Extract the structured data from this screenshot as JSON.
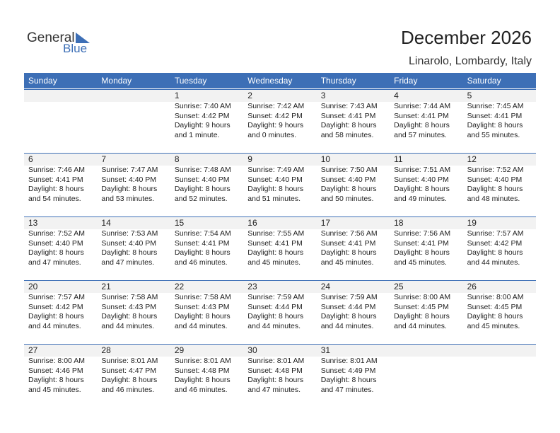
{
  "logo": {
    "general": "General",
    "blue": "Blue"
  },
  "header": {
    "title": "December 2026",
    "subtitle": "Linarolo, Lombardy, Italy"
  },
  "weekdays": [
    "Sunday",
    "Monday",
    "Tuesday",
    "Wednesday",
    "Thursday",
    "Friday",
    "Saturday"
  ],
  "weeks": [
    [
      null,
      null,
      {
        "day": 1,
        "lines": [
          "Sunrise: 7:40 AM",
          "Sunset: 4:42 PM",
          "Daylight: 9 hours",
          "and 1 minute."
        ]
      },
      {
        "day": 2,
        "lines": [
          "Sunrise: 7:42 AM",
          "Sunset: 4:42 PM",
          "Daylight: 9 hours",
          "and 0 minutes."
        ]
      },
      {
        "day": 3,
        "lines": [
          "Sunrise: 7:43 AM",
          "Sunset: 4:41 PM",
          "Daylight: 8 hours",
          "and 58 minutes."
        ]
      },
      {
        "day": 4,
        "lines": [
          "Sunrise: 7:44 AM",
          "Sunset: 4:41 PM",
          "Daylight: 8 hours",
          "and 57 minutes."
        ]
      },
      {
        "day": 5,
        "lines": [
          "Sunrise: 7:45 AM",
          "Sunset: 4:41 PM",
          "Daylight: 8 hours",
          "and 55 minutes."
        ]
      }
    ],
    [
      {
        "day": 6,
        "lines": [
          "Sunrise: 7:46 AM",
          "Sunset: 4:41 PM",
          "Daylight: 8 hours",
          "and 54 minutes."
        ]
      },
      {
        "day": 7,
        "lines": [
          "Sunrise: 7:47 AM",
          "Sunset: 4:40 PM",
          "Daylight: 8 hours",
          "and 53 minutes."
        ]
      },
      {
        "day": 8,
        "lines": [
          "Sunrise: 7:48 AM",
          "Sunset: 4:40 PM",
          "Daylight: 8 hours",
          "and 52 minutes."
        ]
      },
      {
        "day": 9,
        "lines": [
          "Sunrise: 7:49 AM",
          "Sunset: 4:40 PM",
          "Daylight: 8 hours",
          "and 51 minutes."
        ]
      },
      {
        "day": 10,
        "lines": [
          "Sunrise: 7:50 AM",
          "Sunset: 4:40 PM",
          "Daylight: 8 hours",
          "and 50 minutes."
        ]
      },
      {
        "day": 11,
        "lines": [
          "Sunrise: 7:51 AM",
          "Sunset: 4:40 PM",
          "Daylight: 8 hours",
          "and 49 minutes."
        ]
      },
      {
        "day": 12,
        "lines": [
          "Sunrise: 7:52 AM",
          "Sunset: 4:40 PM",
          "Daylight: 8 hours",
          "and 48 minutes."
        ]
      }
    ],
    [
      {
        "day": 13,
        "lines": [
          "Sunrise: 7:52 AM",
          "Sunset: 4:40 PM",
          "Daylight: 8 hours",
          "and 47 minutes."
        ]
      },
      {
        "day": 14,
        "lines": [
          "Sunrise: 7:53 AM",
          "Sunset: 4:40 PM",
          "Daylight: 8 hours",
          "and 47 minutes."
        ]
      },
      {
        "day": 15,
        "lines": [
          "Sunrise: 7:54 AM",
          "Sunset: 4:41 PM",
          "Daylight: 8 hours",
          "and 46 minutes."
        ]
      },
      {
        "day": 16,
        "lines": [
          "Sunrise: 7:55 AM",
          "Sunset: 4:41 PM",
          "Daylight: 8 hours",
          "and 45 minutes."
        ]
      },
      {
        "day": 17,
        "lines": [
          "Sunrise: 7:56 AM",
          "Sunset: 4:41 PM",
          "Daylight: 8 hours",
          "and 45 minutes."
        ]
      },
      {
        "day": 18,
        "lines": [
          "Sunrise: 7:56 AM",
          "Sunset: 4:41 PM",
          "Daylight: 8 hours",
          "and 45 minutes."
        ]
      },
      {
        "day": 19,
        "lines": [
          "Sunrise: 7:57 AM",
          "Sunset: 4:42 PM",
          "Daylight: 8 hours",
          "and 44 minutes."
        ]
      }
    ],
    [
      {
        "day": 20,
        "lines": [
          "Sunrise: 7:57 AM",
          "Sunset: 4:42 PM",
          "Daylight: 8 hours",
          "and 44 minutes."
        ]
      },
      {
        "day": 21,
        "lines": [
          "Sunrise: 7:58 AM",
          "Sunset: 4:43 PM",
          "Daylight: 8 hours",
          "and 44 minutes."
        ]
      },
      {
        "day": 22,
        "lines": [
          "Sunrise: 7:58 AM",
          "Sunset: 4:43 PM",
          "Daylight: 8 hours",
          "and 44 minutes."
        ]
      },
      {
        "day": 23,
        "lines": [
          "Sunrise: 7:59 AM",
          "Sunset: 4:44 PM",
          "Daylight: 8 hours",
          "and 44 minutes."
        ]
      },
      {
        "day": 24,
        "lines": [
          "Sunrise: 7:59 AM",
          "Sunset: 4:44 PM",
          "Daylight: 8 hours",
          "and 44 minutes."
        ]
      },
      {
        "day": 25,
        "lines": [
          "Sunrise: 8:00 AM",
          "Sunset: 4:45 PM",
          "Daylight: 8 hours",
          "and 44 minutes."
        ]
      },
      {
        "day": 26,
        "lines": [
          "Sunrise: 8:00 AM",
          "Sunset: 4:45 PM",
          "Daylight: 8 hours",
          "and 45 minutes."
        ]
      }
    ],
    [
      {
        "day": 27,
        "lines": [
          "Sunrise: 8:00 AM",
          "Sunset: 4:46 PM",
          "Daylight: 8 hours",
          "and 45 minutes."
        ]
      },
      {
        "day": 28,
        "lines": [
          "Sunrise: 8:01 AM",
          "Sunset: 4:47 PM",
          "Daylight: 8 hours",
          "and 46 minutes."
        ]
      },
      {
        "day": 29,
        "lines": [
          "Sunrise: 8:01 AM",
          "Sunset: 4:48 PM",
          "Daylight: 8 hours",
          "and 46 minutes."
        ]
      },
      {
        "day": 30,
        "lines": [
          "Sunrise: 8:01 AM",
          "Sunset: 4:48 PM",
          "Daylight: 8 hours",
          "and 47 minutes."
        ]
      },
      {
        "day": 31,
        "lines": [
          "Sunrise: 8:01 AM",
          "Sunset: 4:49 PM",
          "Daylight: 8 hours",
          "and 47 minutes."
        ]
      },
      null,
      null
    ]
  ]
}
